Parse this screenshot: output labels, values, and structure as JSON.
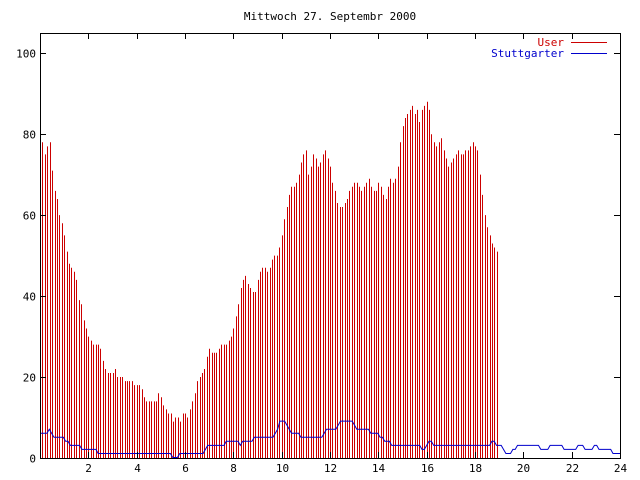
{
  "chart_data": {
    "type": "bar",
    "title": "Mittwoch 27. Septembr 2000",
    "xlabel": "",
    "ylabel": "",
    "xlim": [
      0,
      24
    ],
    "ylim": [
      0,
      105
    ],
    "xticks": [
      2,
      4,
      6,
      8,
      10,
      12,
      14,
      16,
      18,
      20,
      22,
      24
    ],
    "yticks": [
      0,
      20,
      40,
      60,
      80,
      100
    ],
    "legend_position": "top-right",
    "colors": {
      "User": "#cc0000",
      "Stuttgarter": "#0000cc"
    },
    "x_step_hours": 0.1,
    "series": [
      {
        "name": "User",
        "style": "impulses",
        "values": [
          78,
          78,
          75,
          77,
          78,
          71,
          66,
          64,
          60,
          58,
          55,
          51,
          48,
          47,
          46,
          44,
          39,
          38,
          34,
          32,
          30,
          29,
          28,
          28,
          28,
          27,
          24,
          22,
          21,
          21,
          21,
          22,
          20,
          20,
          20,
          19,
          19,
          19,
          19,
          18,
          18,
          18,
          17,
          15,
          14,
          14,
          14,
          14,
          14,
          16,
          15,
          13,
          12,
          11,
          11,
          9,
          10,
          10,
          9,
          11,
          11,
          10,
          12,
          14,
          16,
          19,
          20,
          21,
          22,
          25,
          27,
          26,
          26,
          26,
          27,
          28,
          28,
          28,
          29,
          30,
          32,
          35,
          38,
          42,
          44,
          45,
          43,
          42,
          41,
          41,
          44,
          46,
          47,
          47,
          46,
          47,
          49,
          50,
          50,
          52,
          55,
          59,
          62,
          65,
          67,
          67,
          68,
          70,
          73,
          75,
          76,
          70,
          72,
          75,
          74,
          72,
          73,
          75,
          76,
          74,
          72,
          68,
          66,
          63,
          62,
          62,
          63,
          64,
          66,
          67,
          68,
          68,
          67,
          66,
          67,
          68,
          69,
          67,
          66,
          66,
          68,
          67,
          65,
          64,
          67,
          69,
          68,
          69,
          72,
          78,
          82,
          84,
          85,
          86,
          87,
          85,
          86,
          83,
          86,
          87,
          88,
          86,
          80,
          78,
          77,
          78,
          79,
          76,
          74,
          72,
          73,
          74,
          75,
          76,
          75,
          75,
          76,
          76,
          77,
          78,
          77,
          76,
          70,
          65,
          60,
          57,
          55,
          53,
          52,
          51
        ]
      },
      {
        "name": "Stuttgarter",
        "style": "line",
        "values": [
          6,
          6,
          6,
          6,
          7,
          6,
          5,
          5,
          5,
          5,
          5,
          4,
          4,
          3,
          3,
          3,
          3,
          3,
          2,
          2,
          2,
          2,
          2,
          2,
          2,
          1,
          1,
          1,
          1,
          1,
          1,
          1,
          1,
          1,
          1,
          1,
          1,
          1,
          1,
          1,
          1,
          1,
          1,
          1,
          1,
          1,
          1,
          1,
          1,
          1,
          1,
          1,
          1,
          1,
          1,
          1,
          1,
          0,
          0,
          0,
          1,
          1,
          1,
          1,
          1,
          1,
          1,
          1,
          1,
          1,
          1,
          2,
          3,
          3,
          3,
          3,
          3,
          3,
          3,
          3,
          4,
          4,
          4,
          4,
          4,
          4,
          3,
          4,
          4,
          4,
          4,
          4,
          5,
          5,
          5,
          5,
          5,
          5,
          5,
          5,
          5,
          6,
          7,
          9,
          9,
          9,
          8,
          7,
          6,
          6,
          6,
          6,
          5,
          5,
          5,
          5,
          5,
          5,
          5,
          5,
          5,
          5,
          6,
          7,
          7,
          7,
          7,
          7,
          8,
          9,
          9,
          9,
          9,
          9,
          9,
          8,
          7,
          7,
          7,
          7,
          7,
          7,
          6,
          6,
          6,
          6,
          5,
          5,
          4,
          4,
          4,
          3,
          3,
          3,
          3,
          3,
          3,
          3,
          3,
          3,
          3,
          3,
          3,
          3,
          2,
          2,
          3,
          4,
          4,
          3,
          3,
          3,
          3,
          3,
          3,
          3,
          3,
          3,
          3,
          3,
          3,
          3,
          3,
          3,
          3,
          3,
          3,
          3,
          3,
          3,
          3,
          3,
          3,
          3,
          4,
          4,
          3,
          3,
          3,
          2,
          1,
          1,
          1,
          2,
          2,
          3,
          3,
          3,
          3,
          3,
          3,
          3,
          3,
          3,
          3,
          2,
          2,
          2,
          2,
          3,
          3,
          3,
          3,
          3,
          3,
          2,
          2,
          2,
          2,
          2,
          2,
          3,
          3,
          3,
          2,
          2,
          2,
          2,
          3,
          3,
          2,
          2,
          2,
          2,
          2,
          2,
          1,
          1,
          1,
          1
        ]
      }
    ]
  }
}
